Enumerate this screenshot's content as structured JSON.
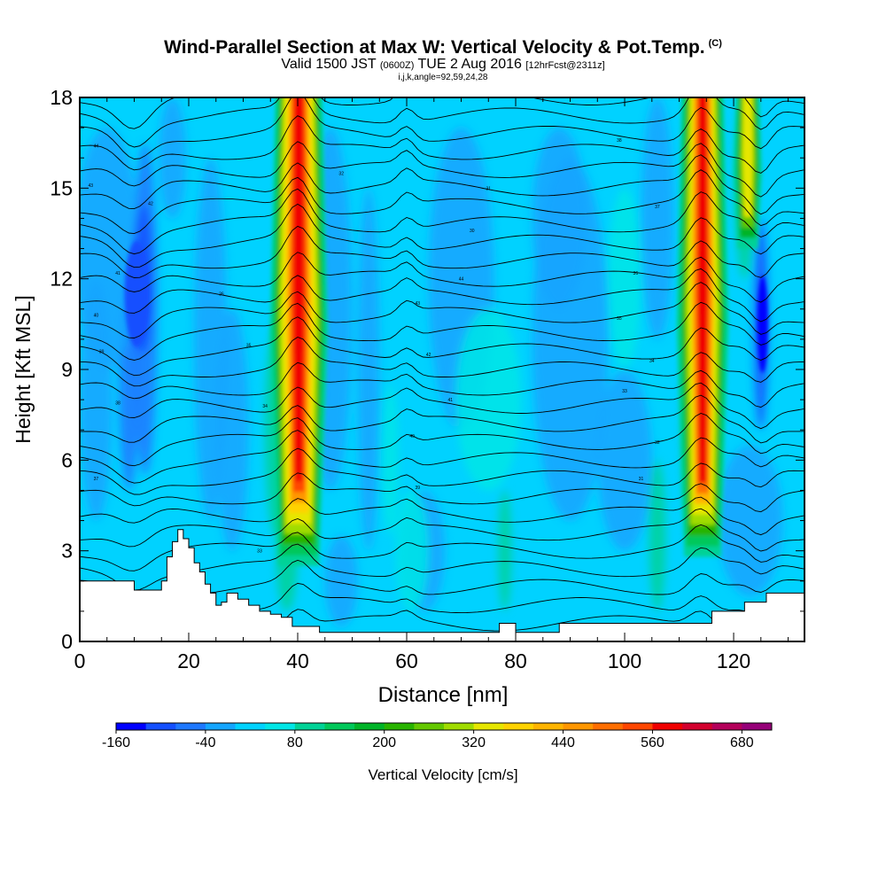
{
  "header": {
    "title": "Wind-Parallel Section at Max W: Vertical Velocity & Pot.Temp.",
    "copyright": "(C)",
    "valid_prefix": "Valid 1500 JST",
    "valid_utc": "(0600Z)",
    "valid_date": "TUE 2 Aug 2016",
    "forecast": "[12hrFcst@2311z]",
    "indices": "i,j,k,angle=92,59,24,28"
  },
  "chart_data": {
    "type": "heatmap",
    "xlabel": "Distance [nm]",
    "ylabel": "Height [Kft MSL]",
    "xlim": [
      0,
      133
    ],
    "ylim": [
      0,
      18
    ],
    "xticks": [
      0,
      20,
      40,
      60,
      80,
      100,
      120
    ],
    "yticks": [
      0,
      3,
      6,
      9,
      12,
      15,
      18
    ],
    "background_level": "-40 to 40 cm/s (cyan/aqua)",
    "updraft_cores": [
      {
        "x": 40.5,
        "z_bottom": 3,
        "z_top": 18,
        "max_w_cm_s": 560
      },
      {
        "x": 114.5,
        "z_bottom": 3,
        "z_top": 18,
        "max_w_cm_s": 560
      },
      {
        "x": 123,
        "z_bottom": 12,
        "z_top": 18,
        "max_w_cm_s": 320
      }
    ],
    "downdraft_cores": [
      {
        "x": 10,
        "z_bottom": 7,
        "z_top": 17,
        "min_w_cm_s": -120
      },
      {
        "x": 125,
        "z_bottom": 6,
        "z_top": 14,
        "min_w_cm_s": -160
      }
    ],
    "terrain_kft": [
      [
        0,
        2.0
      ],
      [
        9,
        2.0
      ],
      [
        10,
        1.7
      ],
      [
        14,
        1.7
      ],
      [
        15,
        2.0
      ],
      [
        16,
        2.8
      ],
      [
        17,
        3.3
      ],
      [
        18,
        3.7
      ],
      [
        19,
        3.4
      ],
      [
        20,
        3.1
      ],
      [
        21,
        2.6
      ],
      [
        22,
        2.3
      ],
      [
        23,
        1.9
      ],
      [
        24,
        1.6
      ],
      [
        25,
        1.2
      ],
      [
        26,
        1.3
      ],
      [
        27,
        1.6
      ],
      [
        29,
        1.4
      ],
      [
        31,
        1.2
      ],
      [
        33,
        1.0
      ],
      [
        35,
        0.9
      ],
      [
        37,
        0.8
      ],
      [
        39,
        0.5
      ],
      [
        44,
        0.3
      ],
      [
        77,
        0.3
      ],
      [
        77,
        0.6
      ],
      [
        80,
        0.6
      ],
      [
        80,
        0.3
      ],
      [
        88,
        0.3
      ],
      [
        88,
        0.6
      ],
      [
        102,
        0.6
      ],
      [
        112,
        0.6
      ],
      [
        116,
        1.0
      ],
      [
        121,
        1.0
      ],
      [
        122,
        1.3
      ],
      [
        125,
        1.3
      ],
      [
        126,
        1.6
      ],
      [
        133,
        1.6
      ]
    ],
    "isentrope_labels": [
      "44",
      "43",
      "42",
      "41",
      "40",
      "39",
      "38",
      "37",
      "36",
      "35",
      "34",
      "33",
      "32",
      "31",
      "30"
    ],
    "colorbar": {
      "title": "Vertical Velocity [cm/s]",
      "levels": [
        -160,
        -120,
        -80,
        -40,
        0,
        40,
        80,
        120,
        160,
        200,
        240,
        280,
        320,
        360,
        400,
        440,
        480,
        520,
        560,
        600,
        640,
        680,
        720
      ],
      "tick_labels": [
        "-160",
        "-40",
        "80",
        "200",
        "320",
        "440",
        "560",
        "680"
      ],
      "colors": [
        "#0000ff",
        "#1450ff",
        "#1e78ff",
        "#14a5ff",
        "#00d2ff",
        "#00e6e6",
        "#00d296",
        "#00c85a",
        "#00b428",
        "#28b400",
        "#64c800",
        "#a0dc00",
        "#e6e600",
        "#ffd200",
        "#ffb400",
        "#ff9600",
        "#ff6e00",
        "#ff4600",
        "#f00000",
        "#d2002d",
        "#b4005a",
        "#960078"
      ]
    }
  }
}
